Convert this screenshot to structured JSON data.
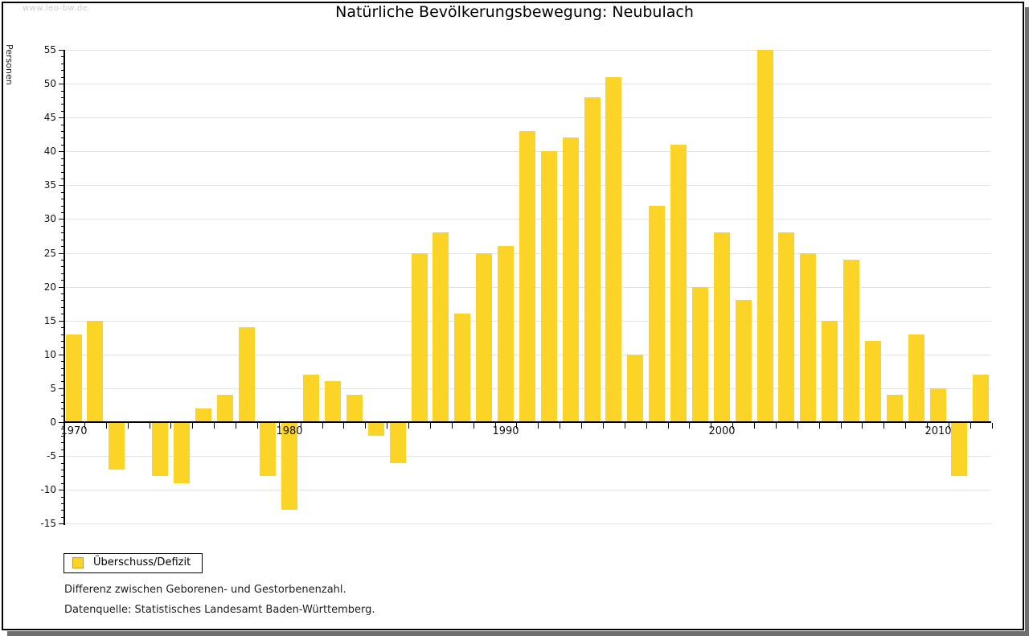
{
  "watermark": "www.leo-bw.de",
  "title": "Natürliche Bevölkerungsbewegung: Neubulach",
  "legend": {
    "label": "Überschuss/Defizit"
  },
  "notes": {
    "line1": "Differenz zwischen Geborenen- und Gestorbenenzahl.",
    "line2": "Datenquelle: Statistisches Landesamt Baden-Württemberg."
  },
  "colors": {
    "bar": "#fcd327",
    "barBorder": "#c2a11f",
    "grid": "#e2e2e2",
    "axis": "#000000",
    "shadow": "#6f6f6f",
    "watermark": "#cccccc"
  },
  "chart_data": {
    "type": "bar",
    "title": "Natürliche Bevölkerungsbewegung: Neubulach",
    "xlabel": "",
    "ylabel": "Personen",
    "series_name": "Überschuss/Defizit",
    "x": [
      1970,
      1971,
      1972,
      1973,
      1974,
      1975,
      1976,
      1977,
      1978,
      1979,
      1980,
      1981,
      1982,
      1983,
      1984,
      1985,
      1986,
      1987,
      1988,
      1989,
      1990,
      1991,
      1992,
      1993,
      1994,
      1995,
      1996,
      1997,
      1998,
      1999,
      2000,
      2001,
      2002,
      2003,
      2004,
      2005,
      2006,
      2007,
      2008,
      2009,
      2010,
      2011,
      2012
    ],
    "values": [
      13,
      15,
      -7,
      0,
      -8,
      -9,
      2,
      4,
      14,
      -8,
      -13,
      7,
      6,
      4,
      -2,
      -6,
      25,
      28,
      16,
      25,
      26,
      43,
      40,
      42,
      48,
      51,
      10,
      32,
      41,
      20,
      28,
      18,
      55,
      28,
      25,
      15,
      24,
      12,
      4,
      13,
      5,
      -8,
      7
    ],
    "ylim": [
      -15,
      55
    ],
    "ytick_step": 5,
    "yticks": [
      55,
      50,
      45,
      40,
      35,
      30,
      25,
      20,
      15,
      10,
      5,
      0,
      -5,
      -10,
      -15
    ],
    "xticks": [
      1970,
      1980,
      1990,
      2000,
      2010
    ],
    "grid": true,
    "legend_position": "bottom-left"
  }
}
